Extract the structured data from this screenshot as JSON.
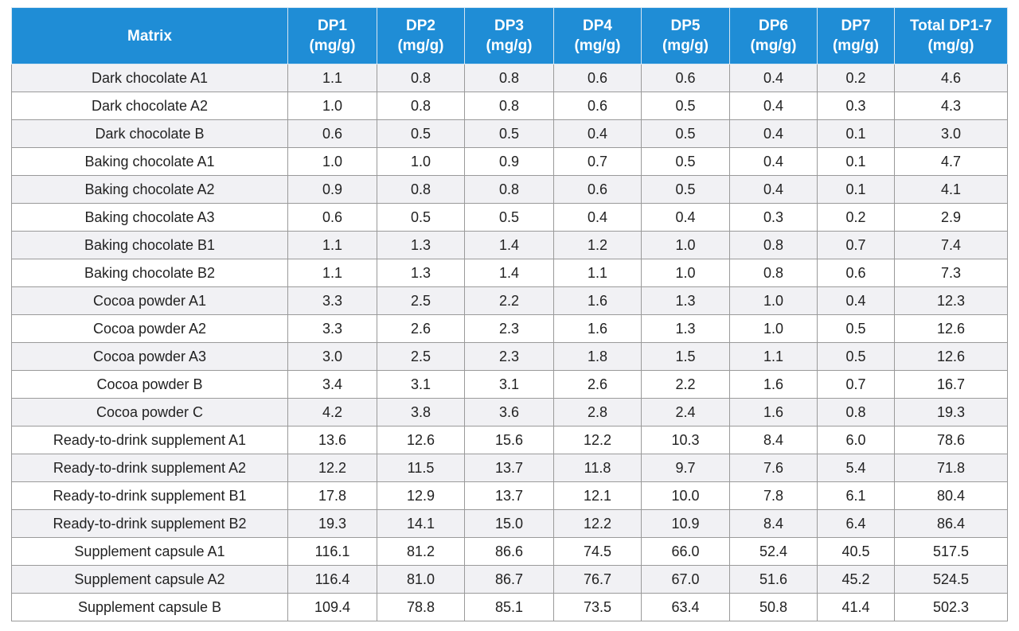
{
  "table": {
    "headers": [
      [
        "Matrix"
      ],
      [
        "DP1",
        "(mg/g)"
      ],
      [
        "DP2",
        "(mg/g)"
      ],
      [
        "DP3",
        "(mg/g)"
      ],
      [
        "DP4",
        "(mg/g)"
      ],
      [
        "DP5",
        "(mg/g)"
      ],
      [
        "DP6",
        "(mg/g)"
      ],
      [
        "DP7",
        "(mg/g)"
      ],
      [
        "Total DP1-7",
        "(mg/g)"
      ]
    ],
    "rows": [
      [
        "Dark chocolate A1",
        "1.1",
        "0.8",
        "0.8",
        "0.6",
        "0.6",
        "0.4",
        "0.2",
        "4.6"
      ],
      [
        "Dark chocolate A2",
        "1.0",
        "0.8",
        "0.8",
        "0.6",
        "0.5",
        "0.4",
        "0.3",
        "4.3"
      ],
      [
        "Dark chocolate B",
        "0.6",
        "0.5",
        "0.5",
        "0.4",
        "0.5",
        "0.4",
        "0.1",
        "3.0"
      ],
      [
        "Baking chocolate A1",
        "1.0",
        "1.0",
        "0.9",
        "0.7",
        "0.5",
        "0.4",
        "0.1",
        "4.7"
      ],
      [
        "Baking chocolate A2",
        "0.9",
        "0.8",
        "0.8",
        "0.6",
        "0.5",
        "0.4",
        "0.1",
        "4.1"
      ],
      [
        "Baking chocolate A3",
        "0.6",
        "0.5",
        "0.5",
        "0.4",
        "0.4",
        "0.3",
        "0.2",
        "2.9"
      ],
      [
        "Baking chocolate B1",
        "1.1",
        "1.3",
        "1.4",
        "1.2",
        "1.0",
        "0.8",
        "0.7",
        "7.4"
      ],
      [
        "Baking chocolate B2",
        "1.1",
        "1.3",
        "1.4",
        "1.1",
        "1.0",
        "0.8",
        "0.6",
        "7.3"
      ],
      [
        "Cocoa powder A1",
        "3.3",
        "2.5",
        "2.2",
        "1.6",
        "1.3",
        "1.0",
        "0.4",
        "12.3"
      ],
      [
        "Cocoa powder A2",
        "3.3",
        "2.6",
        "2.3",
        "1.6",
        "1.3",
        "1.0",
        "0.5",
        "12.6"
      ],
      [
        "Cocoa powder A3",
        "3.0",
        "2.5",
        "2.3",
        "1.8",
        "1.5",
        "1.1",
        "0.5",
        "12.6"
      ],
      [
        "Cocoa powder B",
        "3.4",
        "3.1",
        "3.1",
        "2.6",
        "2.2",
        "1.6",
        "0.7",
        "16.7"
      ],
      [
        "Cocoa powder C",
        "4.2",
        "3.8",
        "3.6",
        "2.8",
        "2.4",
        "1.6",
        "0.8",
        "19.3"
      ],
      [
        "Ready-to-drink supplement A1",
        "13.6",
        "12.6",
        "15.6",
        "12.2",
        "10.3",
        "8.4",
        "6.0",
        "78.6"
      ],
      [
        "Ready-to-drink supplement A2",
        "12.2",
        "11.5",
        "13.7",
        "11.8",
        "9.7",
        "7.6",
        "5.4",
        "71.8"
      ],
      [
        "Ready-to-drink supplement B1",
        "17.8",
        "12.9",
        "13.7",
        "12.1",
        "10.0",
        "7.8",
        "6.1",
        "80.4"
      ],
      [
        "Ready-to-drink supplement B2",
        "19.3",
        "14.1",
        "15.0",
        "12.2",
        "10.9",
        "8.4",
        "6.4",
        "86.4"
      ],
      [
        "Supplement capsule A1",
        "116.1",
        "81.2",
        "86.6",
        "74.5",
        "66.0",
        "52.4",
        "40.5",
        "517.5"
      ],
      [
        "Supplement capsule A2",
        "116.4",
        "81.0",
        "86.7",
        "76.7",
        "67.0",
        "51.6",
        "45.2",
        "524.5"
      ],
      [
        "Supplement capsule B",
        "109.4",
        "78.8",
        "85.1",
        "73.5",
        "63.4",
        "50.8",
        "41.4",
        "502.3"
      ]
    ]
  },
  "colors": {
    "header_bg": "#1f8dd6",
    "header_text": "#ffffff",
    "row_stripe": "#f1f1f4",
    "border": "#9a9a9a"
  }
}
